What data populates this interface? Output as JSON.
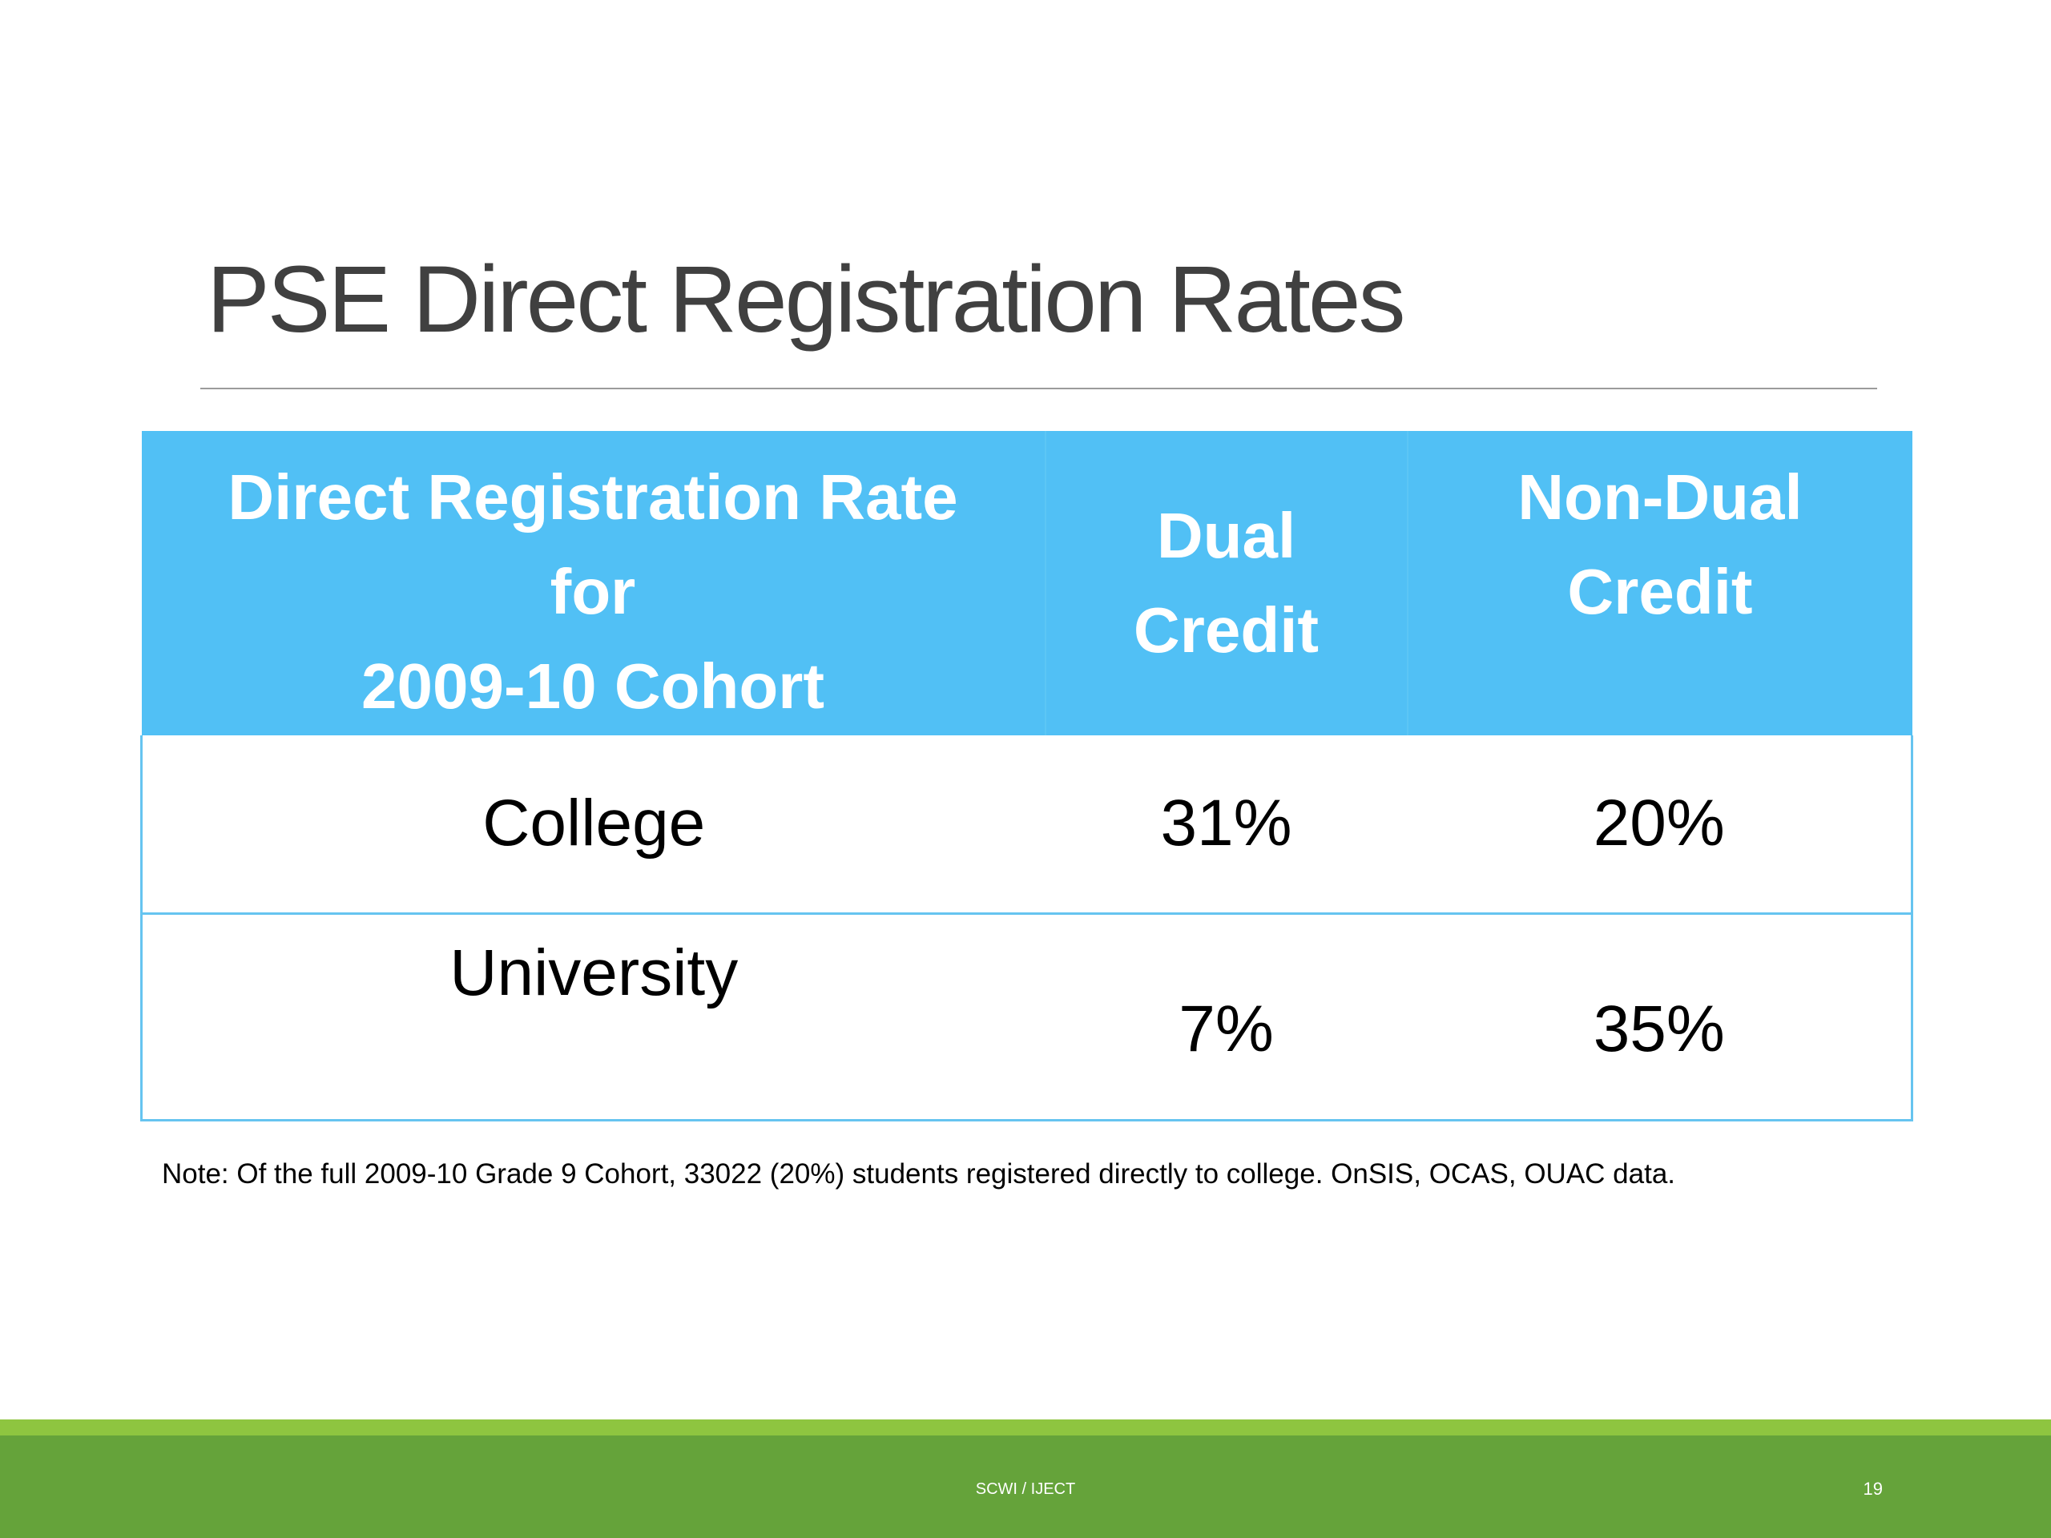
{
  "slide": {
    "title": "PSE Direct Registration Rates",
    "note": "Note: Of the full 2009-10 Grade 9 Cohort, 33022 (20%) students registered directly to college. OnSIS, OCAS, OUAC data.",
    "footer": {
      "center_text": "SCWI / IJECT",
      "page_number": "19"
    },
    "colors": {
      "header_fill": "#51c0f5",
      "footer_green": "#65a33a",
      "footer_accent": "#8ec540",
      "title_text": "#404040"
    }
  },
  "table": {
    "headers": {
      "main": [
        "Direct Registration Rate",
        "for",
        "2009-10 Cohort"
      ],
      "dual": [
        "Dual",
        "Credit"
      ],
      "non_dual": [
        "Non-Dual",
        "Credit"
      ]
    },
    "rows": [
      {
        "label": "College",
        "dual": "31%",
        "non_dual": "20%"
      },
      {
        "label": "University",
        "dual": "7%",
        "non_dual": "35%"
      }
    ]
  },
  "chart_data": {
    "type": "table",
    "title": "PSE Direct Registration Rates",
    "columns": [
      "Direct Registration Rate for 2009-10 Cohort",
      "Dual Credit",
      "Non-Dual Credit"
    ],
    "rows": [
      [
        "College",
        "31%",
        "20%"
      ],
      [
        "University",
        "7%",
        "35%"
      ]
    ]
  }
}
